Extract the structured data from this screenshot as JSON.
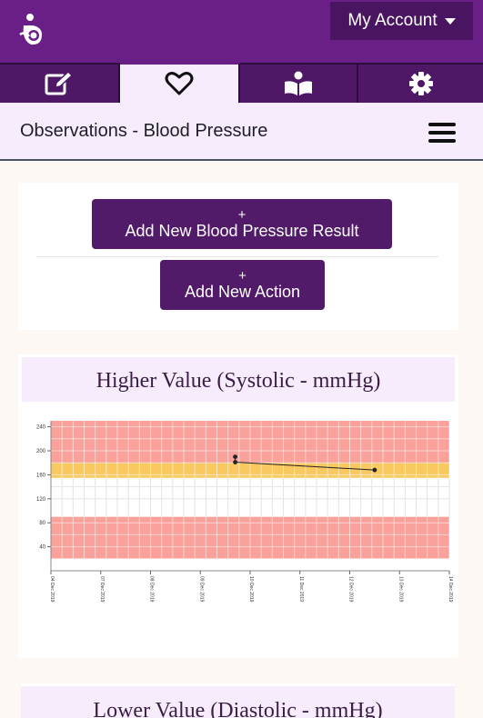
{
  "account": {
    "label": "My Account"
  },
  "tabs": [
    {
      "icon": "edit-icon"
    },
    {
      "icon": "heart-icon"
    },
    {
      "icon": "book-reader-icon"
    },
    {
      "icon": "gear-icon"
    }
  ],
  "header": {
    "title": "Observations - Blood Pressure"
  },
  "actions": {
    "plus": "+",
    "add_result": "Add New Blood Pressure Result",
    "add_action": "Add New Action"
  },
  "systolic": {
    "title": "Higher Value (Systolic - mmHg)"
  },
  "diastolic": {
    "title": "Lower Value (Diastolic - mmHg)"
  },
  "colors": {
    "brand": "#6a1f86",
    "danger_band": "#f9a19a",
    "warning_band": "#f9c85e"
  },
  "chart_data": {
    "type": "line",
    "title": "Higher Value (Systolic - mmHg)",
    "ylim": [
      0,
      250
    ],
    "yticks": [
      40,
      80,
      120,
      160,
      200,
      240
    ],
    "xticks": [
      "04 Dec 2019",
      "07 Dec 2019",
      "08 Dec 2019",
      "09 Dec 2019",
      "10 Dec 2019",
      "11 Dec 2019",
      "12 Dec 2019",
      "13 Dec 2019",
      "14 Dec 2019"
    ],
    "bands": [
      {
        "from": 0,
        "to": 20,
        "color": "#ffffff"
      },
      {
        "from": 20,
        "to": 90,
        "color": "#f9a19a"
      },
      {
        "from": 90,
        "to": 155,
        "color": "#ffffff"
      },
      {
        "from": 155,
        "to": 180,
        "color": "#f9c85e"
      },
      {
        "from": 180,
        "to": 250,
        "color": "#f9a19a"
      }
    ],
    "series": [
      {
        "x": [
          3.7,
          3.7,
          6.5
        ],
        "y": [
          190,
          181,
          168
        ]
      }
    ],
    "grid": true
  }
}
